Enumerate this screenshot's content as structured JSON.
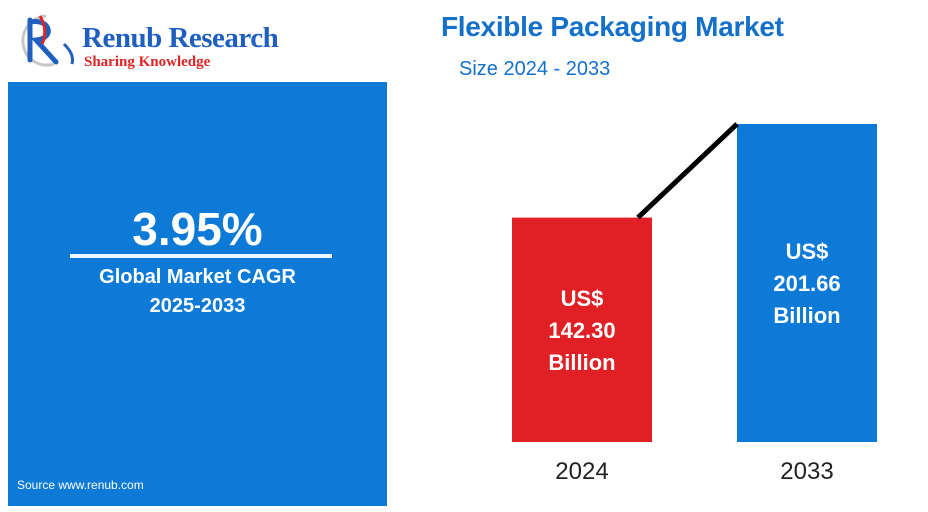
{
  "brand": {
    "name": "Renub Research",
    "tagline": "Sharing Knowledge",
    "primary_color": "#1f5fbf",
    "accent_color": "#e02424",
    "logo_icon": "rr-swoosh-logo"
  },
  "cagr_panel": {
    "value": "3.95%",
    "label": "Global Market CAGR",
    "period": "2025-2033",
    "source": "Source  www.renub.com",
    "background_color": "#0c7ad6"
  },
  "chart_data": {
    "type": "bar",
    "title": "Flexible Packaging Market",
    "subtitle": "Size 2024 - 2033",
    "categories": [
      "2024",
      "2033"
    ],
    "values": [
      142.3,
      201.66
    ],
    "data_labels": [
      [
        "US$",
        "142.30",
        "Billion"
      ],
      [
        "US$",
        "201.66",
        "Billion"
      ]
    ],
    "colors": [
      "#e02024",
      "#0c7ad6"
    ],
    "ylim": [
      0,
      210
    ],
    "grid": false,
    "legend": "none",
    "connector_line": true
  }
}
